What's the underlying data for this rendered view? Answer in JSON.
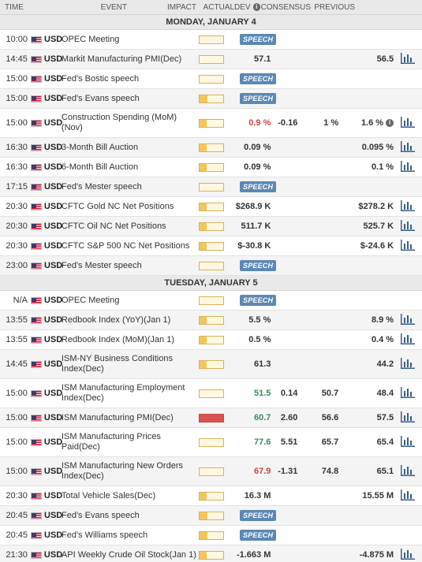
{
  "header": {
    "time": "TIME",
    "event": "EVENT",
    "impact": "IMPACT",
    "actual": "ACTUAL",
    "dev": "DEV",
    "consensus": "CONSENSUS",
    "previous": "PREVIOUS"
  },
  "colors": {
    "speech_badge": "#5b88b4",
    "impact_low": "#f3c55d",
    "impact_medium": "#ee8a1b",
    "impact_high": "#d9534f",
    "negative": "#d0453a",
    "positive": "#3a8a5e"
  },
  "days": [
    {
      "label": "MONDAY, JANUARY 4",
      "events": [
        {
          "time": "10:00",
          "currency": "USD",
          "event": "OPEC Meeting",
          "impact": "medium",
          "speech": "SPEECH",
          "actual": "",
          "dev": "",
          "consensus": "",
          "previous": "",
          "chart": false
        },
        {
          "time": "14:45",
          "currency": "USD",
          "event": "Markit Manufacturing PMI(Dec)",
          "impact": "medium",
          "speech": "",
          "actual": "57.1",
          "dev": "",
          "consensus": "",
          "previous": "56.5",
          "chart": true
        },
        {
          "time": "15:00",
          "currency": "USD",
          "event": "Fed's Bostic speech",
          "impact": "medium",
          "speech": "SPEECH",
          "actual": "",
          "dev": "",
          "consensus": "",
          "previous": "",
          "chart": false
        },
        {
          "time": "15:00",
          "currency": "USD",
          "event": "Fed's Evans speech",
          "impact": "low",
          "speech": "SPEECH",
          "actual": "",
          "dev": "",
          "consensus": "",
          "previous": "",
          "chart": false
        },
        {
          "time": "15:00",
          "currency": "USD",
          "event": "Construction Spending (MoM) (Nov)",
          "impact": "low",
          "speech": "",
          "actual": "0.9 %",
          "actual_color": "red",
          "dev": "-0.16",
          "consensus": "1 %",
          "previous": "1.6 %",
          "info": true,
          "chart": true,
          "tall": true
        },
        {
          "time": "16:30",
          "currency": "USD",
          "event": "3-Month Bill Auction",
          "impact": "low",
          "speech": "",
          "actual": "0.09 %",
          "dev": "",
          "consensus": "",
          "previous": "0.095 %",
          "chart": true
        },
        {
          "time": "16:30",
          "currency": "USD",
          "event": "6-Month Bill Auction",
          "impact": "low",
          "speech": "",
          "actual": "0.09 %",
          "dev": "",
          "consensus": "",
          "previous": "0.1 %",
          "chart": true
        },
        {
          "time": "17:15",
          "currency": "USD",
          "event": "Fed's Mester speech",
          "impact": "medium",
          "speech": "SPEECH",
          "actual": "",
          "dev": "",
          "consensus": "",
          "previous": "",
          "chart": false
        },
        {
          "time": "20:30",
          "currency": "USD",
          "event": "CFTC Gold NC Net Positions",
          "impact": "low",
          "speech": "",
          "actual": "$268.9 K",
          "dev": "",
          "consensus": "",
          "previous": "$278.2 K",
          "chart": true
        },
        {
          "time": "20:30",
          "currency": "USD",
          "event": "CFTC Oil NC Net Positions",
          "impact": "low",
          "speech": "",
          "actual": "511.7 K",
          "dev": "",
          "consensus": "",
          "previous": "525.7 K",
          "chart": true
        },
        {
          "time": "20:30",
          "currency": "USD",
          "event": "CFTC S&P 500 NC Net Positions",
          "impact": "low",
          "speech": "",
          "actual": "$-30.8 K",
          "dev": "",
          "consensus": "",
          "previous": "$-24.6 K",
          "chart": true
        },
        {
          "time": "23:00",
          "currency": "USD",
          "event": "Fed's Mester speech",
          "impact": "medium",
          "speech": "SPEECH",
          "actual": "",
          "dev": "",
          "consensus": "",
          "previous": "",
          "chart": false
        }
      ]
    },
    {
      "label": "TUESDAY, JANUARY 5",
      "events": [
        {
          "time": "N/A",
          "currency": "USD",
          "event": "OPEC Meeting",
          "impact": "medium",
          "speech": "SPEECH",
          "actual": "",
          "dev": "",
          "consensus": "",
          "previous": "",
          "chart": false
        },
        {
          "time": "13:55",
          "currency": "USD",
          "event": "Redbook Index (YoY)(Jan 1)",
          "impact": "low",
          "speech": "",
          "actual": "5.5 %",
          "dev": "",
          "consensus": "",
          "previous": "8.9 %",
          "chart": true
        },
        {
          "time": "13:55",
          "currency": "USD",
          "event": "Redbook Index (MoM)(Jan 1)",
          "impact": "low",
          "speech": "",
          "actual": "0.5 %",
          "dev": "",
          "consensus": "",
          "previous": "0.4 %",
          "chart": true
        },
        {
          "time": "14:45",
          "currency": "USD",
          "event": "ISM-NY Business Conditions Index(Dec)",
          "impact": "low",
          "speech": "",
          "actual": "61.3",
          "dev": "",
          "consensus": "",
          "previous": "44.2",
          "chart": true,
          "tall": true
        },
        {
          "time": "15:00",
          "currency": "USD",
          "event": "ISM Manufacturing Employment Index(Dec)",
          "impact": "medium",
          "speech": "",
          "actual": "51.5",
          "actual_color": "green",
          "dev": "0.14",
          "consensus": "50.7",
          "previous": "48.4",
          "chart": true,
          "tall": true
        },
        {
          "time": "15:00",
          "currency": "USD",
          "event": "ISM Manufacturing PMI(Dec)",
          "impact": "high",
          "speech": "",
          "actual": "60.7",
          "actual_color": "green",
          "dev": "2.60",
          "consensus": "56.6",
          "previous": "57.5",
          "chart": true
        },
        {
          "time": "15:00",
          "currency": "USD",
          "event": "ISM Manufacturing Prices Paid(Dec)",
          "impact": "medium",
          "speech": "",
          "actual": "77.6",
          "actual_color": "green",
          "dev": "5.51",
          "consensus": "65.7",
          "previous": "65.4",
          "chart": true,
          "tall": true
        },
        {
          "time": "15:00",
          "currency": "USD",
          "event": "ISM Manufacturing New Orders Index(Dec)",
          "impact": "medium",
          "speech": "",
          "actual": "67.9",
          "actual_color": "red",
          "dev": "-1.31",
          "consensus": "74.8",
          "previous": "65.1",
          "chart": true,
          "tall": true
        },
        {
          "time": "20:30",
          "currency": "USD",
          "event": "Total Vehicle Sales(Dec)",
          "impact": "low",
          "speech": "",
          "actual": "16.3 M",
          "dev": "",
          "consensus": "",
          "previous": "15.55 M",
          "chart": true
        },
        {
          "time": "20:45",
          "currency": "USD",
          "event": "Fed's Evans speech",
          "impact": "low",
          "speech": "SPEECH",
          "actual": "",
          "dev": "",
          "consensus": "",
          "previous": "",
          "chart": false
        },
        {
          "time": "20:45",
          "currency": "USD",
          "event": "Fed's Williams speech",
          "impact": "low",
          "speech": "SPEECH",
          "actual": "",
          "dev": "",
          "consensus": "",
          "previous": "",
          "chart": false
        },
        {
          "time": "21:30",
          "currency": "USD",
          "event": "API Weekly Crude Oil Stock(Jan 1)",
          "impact": "low",
          "speech": "",
          "actual": "-1.663 M",
          "dev": "",
          "consensus": "",
          "previous": "-4.875 M",
          "chart": true
        }
      ]
    }
  ]
}
